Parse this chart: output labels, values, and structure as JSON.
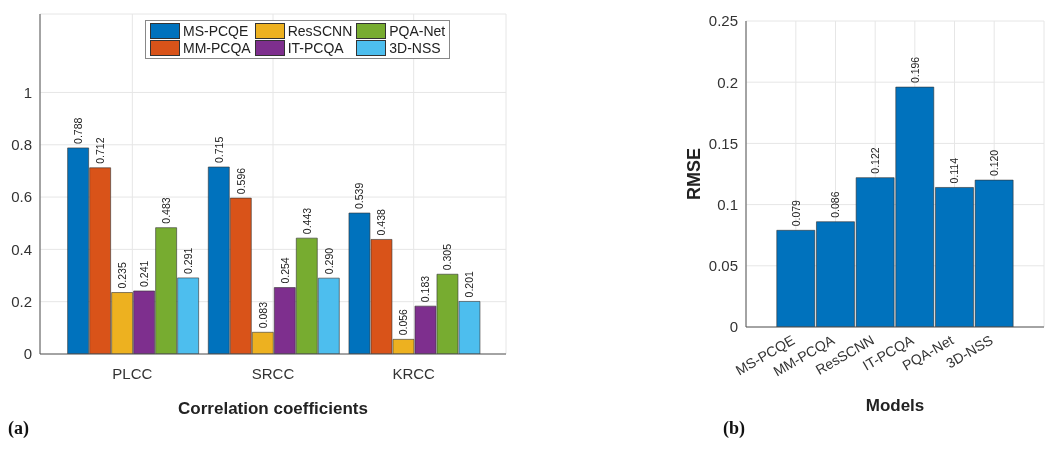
{
  "chart_data": [
    {
      "type": "bar",
      "xlabel": "Correlation coefficients",
      "categories": [
        "PLCC",
        "SRCC",
        "KRCC"
      ],
      "series": [
        {
          "name": "MS-PCQE",
          "color": "#0072bd",
          "values": [
            0.788,
            0.715,
            0.539
          ],
          "value_labels": [
            "0.788",
            "0.715",
            "0.539"
          ]
        },
        {
          "name": "MM-PCQA",
          "color": "#d95319",
          "values": [
            0.712,
            0.596,
            0.438
          ],
          "value_labels": [
            "0.712",
            "0.596",
            "0.438"
          ]
        },
        {
          "name": "ResSCNN",
          "color": "#edb120",
          "values": [
            0.235,
            0.083,
            0.056
          ],
          "value_labels": [
            "0.235",
            "0.083",
            "0.056"
          ]
        },
        {
          "name": "IT-PCQA",
          "color": "#7e2f8e",
          "values": [
            0.241,
            0.254,
            0.183
          ],
          "value_labels": [
            "0.241",
            "0.254",
            "0.183"
          ]
        },
        {
          "name": "PQA-Net",
          "color": "#77ac30",
          "values": [
            0.483,
            0.443,
            0.305
          ],
          "value_labels": [
            "0.483",
            "0.443",
            "0.305"
          ]
        },
        {
          "name": "3D-NSS",
          "color": "#4dbeee",
          "values": [
            0.291,
            0.29,
            0.201
          ],
          "value_labels": [
            "0.291",
            "0.290",
            "0.201"
          ]
        }
      ],
      "ylim": [
        0,
        1.3
      ],
      "yticks": [
        0,
        0.2,
        0.4,
        0.6,
        0.8,
        1
      ],
      "grid": true,
      "legend": "top",
      "annotations": [
        "(a)"
      ]
    },
    {
      "type": "bar",
      "xlabel": "Models",
      "ylabel": "RMSE",
      "categories": [
        "MS-PCQE",
        "MM-PCQA",
        "ResSCNN",
        "IT-PCQA",
        "PQA-Net",
        "3D-NSS"
      ],
      "values": [
        0.079,
        0.086,
        0.122,
        0.196,
        0.114,
        0.12
      ],
      "value_labels": [
        "0.079",
        "0.086",
        "0.122",
        "0.196",
        "0.114",
        "0.120"
      ],
      "color": "#0072bd",
      "ylim": [
        0,
        0.25
      ],
      "yticks": [
        0,
        0.05,
        0.1,
        0.15,
        0.2,
        0.25
      ],
      "grid": true,
      "annotations": [
        "(b)"
      ]
    }
  ]
}
